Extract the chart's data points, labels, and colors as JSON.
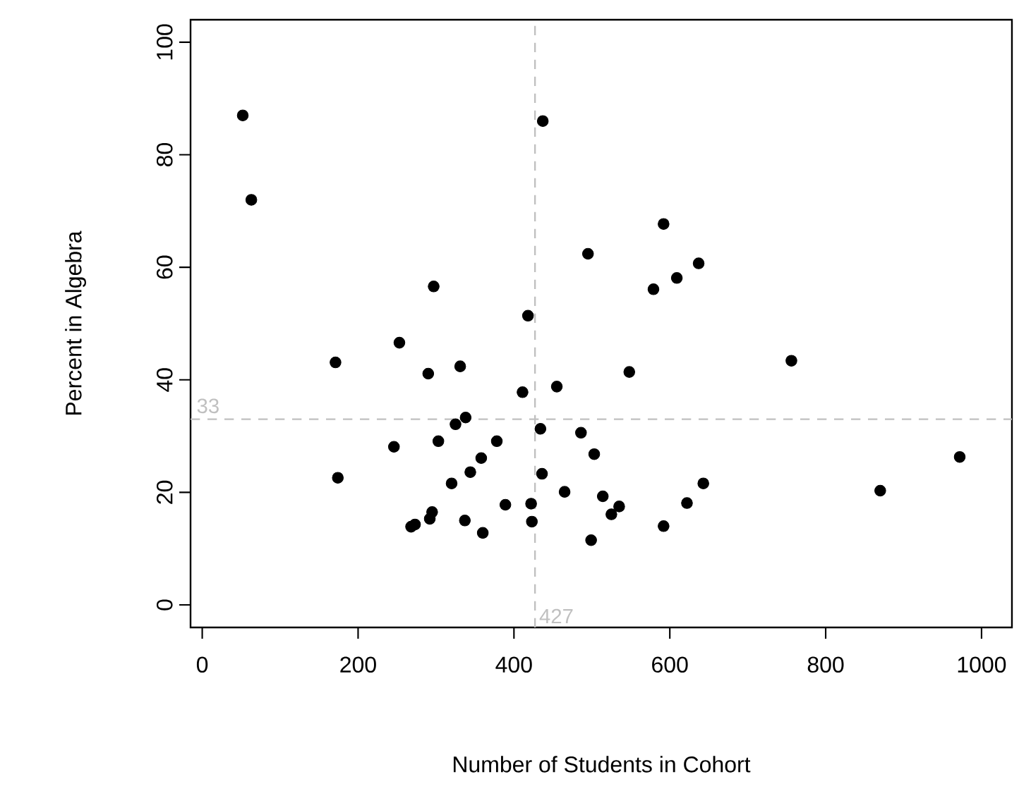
{
  "chart_data": {
    "type": "scatter",
    "xlabel": "Number of Students in Cohort",
    "ylabel": "Percent in Algebra",
    "x": [
      52,
      63,
      437,
      495,
      297,
      418,
      592,
      609,
      579,
      637,
      253,
      171,
      290,
      331,
      411,
      455,
      338,
      325,
      434,
      486,
      246,
      303,
      378,
      503,
      358,
      344,
      436,
      174,
      320,
      465,
      514,
      389,
      422,
      295,
      292,
      337,
      423,
      273,
      268,
      360,
      499,
      548,
      756,
      972,
      870,
      643,
      622,
      592,
      535,
      525
    ],
    "values": [
      87,
      72,
      86,
      62.4,
      56.6,
      51.4,
      67.7,
      58.1,
      56.1,
      60.7,
      46.6,
      43.1,
      41.1,
      42.4,
      37.8,
      38.8,
      33.3,
      32.1,
      31.3,
      30.6,
      28.1,
      29.1,
      29.1,
      26.8,
      26.1,
      23.6,
      23.3,
      22.6,
      21.6,
      20.1,
      19.3,
      17.8,
      18.0,
      16.5,
      15.3,
      15.0,
      14.8,
      14.3,
      13.9,
      12.8,
      11.5,
      41.4,
      43.4,
      26.3,
      20.3,
      21.6,
      18.1,
      14.0,
      17.5,
      16.1
    ],
    "color": "#000000",
    "marker": "circle",
    "xlim": [
      -15,
      1039
    ],
    "ylim": [
      -4,
      104
    ],
    "xticks": [
      0,
      200,
      400,
      600,
      800,
      1000
    ],
    "yticks": [
      0,
      20,
      40,
      60,
      80,
      100
    ],
    "ref_lines": [
      {
        "axis": "x",
        "value": 427,
        "label": "427",
        "color": "#c0c0c0",
        "line_style": "dashed"
      },
      {
        "axis": "y",
        "value": 33,
        "label": "33",
        "color": "#c0c0c0",
        "line_style": "dashed"
      }
    ]
  }
}
